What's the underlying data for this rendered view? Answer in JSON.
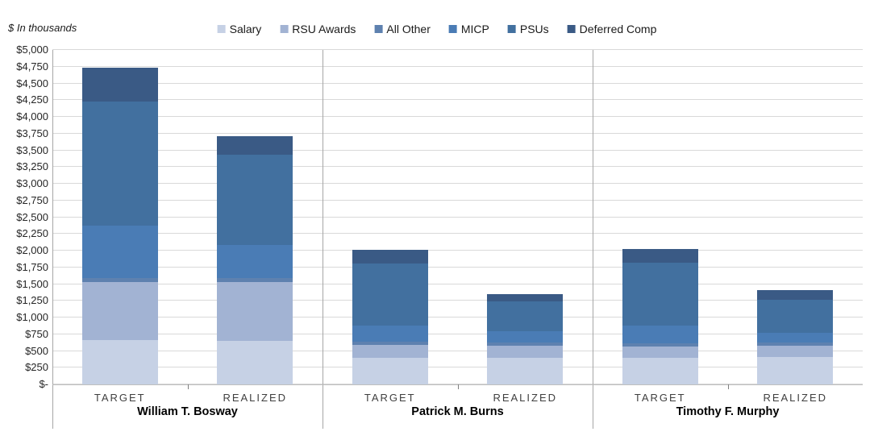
{
  "chart_data": {
    "type": "bar",
    "variant": "stacked-grouped",
    "title": "$ In thousands",
    "groups": [
      "William T. Bosway",
      "Patrick M. Burns",
      "Timothy F. Murphy"
    ],
    "categories": [
      "TARGET",
      "REALIZED"
    ],
    "series": [
      {
        "name": "Salary",
        "color": "#C6D1E5",
        "values": [
          660,
          655,
          400,
          400,
          400,
          410
        ]
      },
      {
        "name": "RSU Awards",
        "color": "#A2B3D3",
        "values": [
          875,
          880,
          190,
          180,
          170,
          170
        ]
      },
      {
        "name": "All Other",
        "color": "#5E81AF",
        "values": [
          60,
          60,
          50,
          50,
          50,
          50
        ]
      },
      {
        "name": "MICP",
        "color": "#4A7CB5",
        "values": [
          775,
          495,
          240,
          170,
          265,
          145
        ]
      },
      {
        "name": "PSUs",
        "color": "#42709F",
        "values": [
          1860,
          1340,
          930,
          445,
          940,
          485
        ]
      },
      {
        "name": "Deferred Comp",
        "color": "#3A5A85",
        "values": [
          505,
          280,
          205,
          100,
          195,
          145
        ]
      }
    ],
    "totals": [
      4735,
      3710,
      2015,
      1345,
      2020,
      1405
    ],
    "ylim": [
      0,
      5000
    ],
    "ytick_step": 250,
    "ytick_labels": [
      "$-",
      "$250",
      "$500",
      "$750",
      "$1,000",
      "$1,250",
      "$1,500",
      "$1,750",
      "$2,000",
      "$2,250",
      "$2,500",
      "$2,750",
      "$3,000",
      "$3,250",
      "$3,500",
      "$3,750",
      "$4,000",
      "$4,250",
      "$4,500",
      "$4,750",
      "$5,000"
    ],
    "grid": "horizontal",
    "legend_position": "top-center",
    "colors": {
      "gridline": "#d9d9d9",
      "axis_line": "#bfbfbf",
      "separator_line": "#a6a6a6",
      "tick": "#808080",
      "category_label": "#404040",
      "group_label": "#000000"
    }
  }
}
